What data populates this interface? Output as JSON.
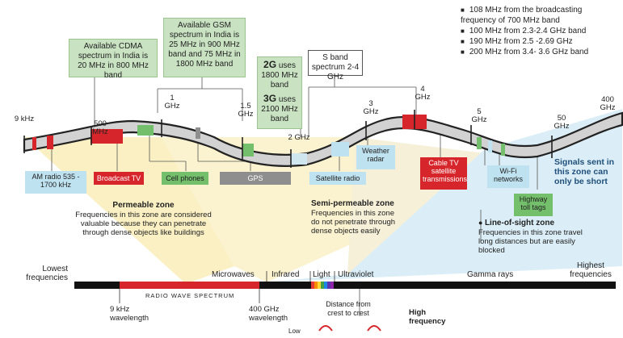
{
  "legend_items": [
    "108 MHz from the broadcasting frequency of 700 MHz band",
    "100 MHz from 2.3-2.4 GHz band",
    "190 MHz from 2.5 -2.69 GHz",
    "200 MHz from 3.4- 3.6 GHz band"
  ],
  "callouts": {
    "cdma": "Available CDMA spectrum in India is 20 MHz in 800 MHz band",
    "gsm": "Available GSM spectrum in India is 25 MHz in 900 MHz band and 75 MHz in 1800 MHz band",
    "g2_strong": "2G",
    "g2_rest": " uses 1800 MHz band",
    "g3_strong": "3G",
    "g3_rest": " uses 2100 MHz band",
    "sband": "S band spectrum 2-4 GHz"
  },
  "freq_marks": {
    "f9khz": "9 kHz",
    "f500": "500 MHz",
    "f1ghz": "1 GHz",
    "f15": "1.5 GHz",
    "f2": "2 GHz",
    "f3": "3 GHz",
    "f4": "4 GHz",
    "f5": "5 GHz",
    "f50": "50 GHz",
    "f400": "400 GHz"
  },
  "services": {
    "am": "AM radio 535 - 1700 kHz",
    "tv": "Broadcast TV",
    "cell": "Cell phones",
    "gps": "GPS",
    "sat": "Satellite radio",
    "weather": "Weather radar",
    "cable": "Cable TV satellite transmissions",
    "wifi": "Wi-Fi networks",
    "toll": "Highway toll tags"
  },
  "zones": {
    "permeable_title": "Permeable zone",
    "permeable_text": "Frequencies in this zone are considered valuable because they can penetrate through dense objects like buildings",
    "semi_title": "Semi-permeable zone",
    "semi_text": "Frequencies in this zone do not penetrate through dense objects easily",
    "los_title": "Line-of-sight zone",
    "los_text": "Frequencies in this zone travel long distances but are easily blocked",
    "short": "Signals sent in this zone can only be short"
  },
  "spectrum": {
    "lowest": "Lowest frequencies",
    "highest": "Highest frequencies",
    "microwaves": "Microwaves",
    "infrared": "Infrared",
    "light": "Light",
    "ultraviolet": "Ultraviolet",
    "gamma": "Gamma rays",
    "radio_wave": "RADIO WAVE SPECTRUM",
    "wl9": "9 kHz wavelength",
    "wl400": "400 GHz wavelength",
    "distance": "Distance from crest to crest",
    "high": "High frequency",
    "low": "Low"
  },
  "colors": {
    "red": "#d7262b",
    "green": "#74bf6b",
    "blue_label": "#bfe2f0",
    "yellow_zone": "#faf0c3",
    "grey_band": "#d4d4d4"
  }
}
